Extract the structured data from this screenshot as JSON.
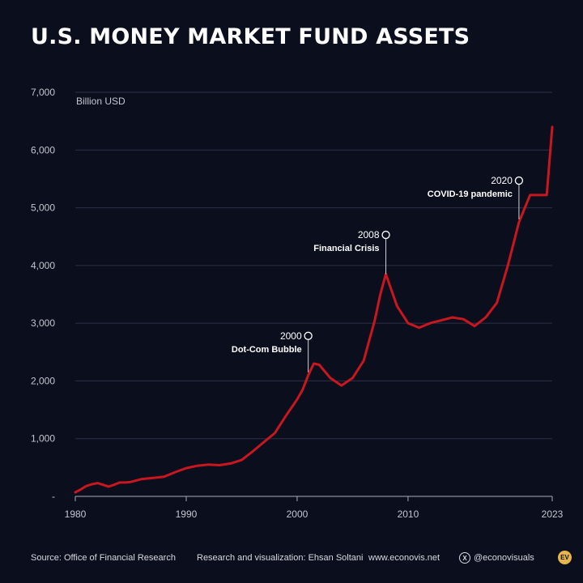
{
  "header": {
    "title": "U.S. MONEY MARKET FUND ASSETS"
  },
  "chart_data": {
    "type": "line",
    "title": "U.S. MONEY MARKET FUND ASSETS",
    "ylabel": "Billion USD",
    "xlim": [
      1980,
      2023
    ],
    "ylim": [
      0,
      7000
    ],
    "y_ticks": [
      {
        "value": 7000,
        "label": "7,000"
      },
      {
        "value": 6000,
        "label": "6,000"
      },
      {
        "value": 5000,
        "label": "5,000"
      },
      {
        "value": 4000,
        "label": "4,000"
      },
      {
        "value": 3000,
        "label": "3,000"
      },
      {
        "value": 2000,
        "label": "2,000"
      },
      {
        "value": 1000,
        "label": "1,000"
      },
      {
        "value": 0,
        "label": "-"
      }
    ],
    "x_ticks": [
      {
        "value": 1980,
        "label": "1980"
      },
      {
        "value": 1990,
        "label": "1990"
      },
      {
        "value": 2000,
        "label": "2000"
      },
      {
        "value": 2010,
        "label": "2010"
      },
      {
        "value": 2023,
        "label": "2023"
      }
    ],
    "grid": true,
    "line_color": "#c8171e",
    "series": [
      {
        "x": [
          1980,
          1980.5,
          1981,
          1981.5,
          1982,
          1982.5,
          1983,
          1983.5,
          1984,
          1984.5,
          1985,
          1986,
          1987,
          1988,
          1989,
          1990,
          1991,
          1992,
          1993,
          1994,
          1995,
          1996,
          1997,
          1998,
          1999,
          2000,
          2000.5,
          2001,
          2001.5,
          2002,
          2003,
          2004,
          2005,
          2006,
          2007,
          2007.5,
          2008,
          2009,
          2010,
          2011,
          2012,
          2013,
          2014,
          2015,
          2016,
          2017,
          2018,
          2019,
          2020,
          2021,
          2022,
          2022.5,
          2023
        ],
        "y": [
          70,
          120,
          180,
          210,
          230,
          200,
          170,
          200,
          240,
          240,
          250,
          300,
          320,
          340,
          420,
          490,
          530,
          550,
          540,
          570,
          630,
          780,
          940,
          1100,
          1400,
          1680,
          1850,
          2100,
          2300,
          2280,
          2050,
          1920,
          2050,
          2350,
          3050,
          3500,
          3850,
          3300,
          3000,
          2920,
          3000,
          3050,
          3100,
          3070,
          2950,
          3100,
          3350,
          4000,
          4750,
          5220,
          5220,
          5220,
          6400
        ]
      }
    ],
    "annotations": [
      {
        "year": "2000",
        "text": "Dot-Com Bubble",
        "x": 2001,
        "y": 2150,
        "marker_y": 2780
      },
      {
        "year": "2008",
        "text": "Financial Crisis",
        "x": 2008,
        "y": 3850,
        "marker_y": 4530
      },
      {
        "year": "2020",
        "text": "COVID-19 pandemic",
        "x": 2020,
        "y": 4800,
        "marker_y": 5470
      }
    ]
  },
  "footer": {
    "source": "Source: Office of Financial Research",
    "credit": "Research and visualization: Ehsan Soltani",
    "website": "www.econovis.net",
    "x_icon": "X",
    "handle": "@econovisuals",
    "logo_text": "EV",
    "logo_color": "#e6b64a"
  }
}
